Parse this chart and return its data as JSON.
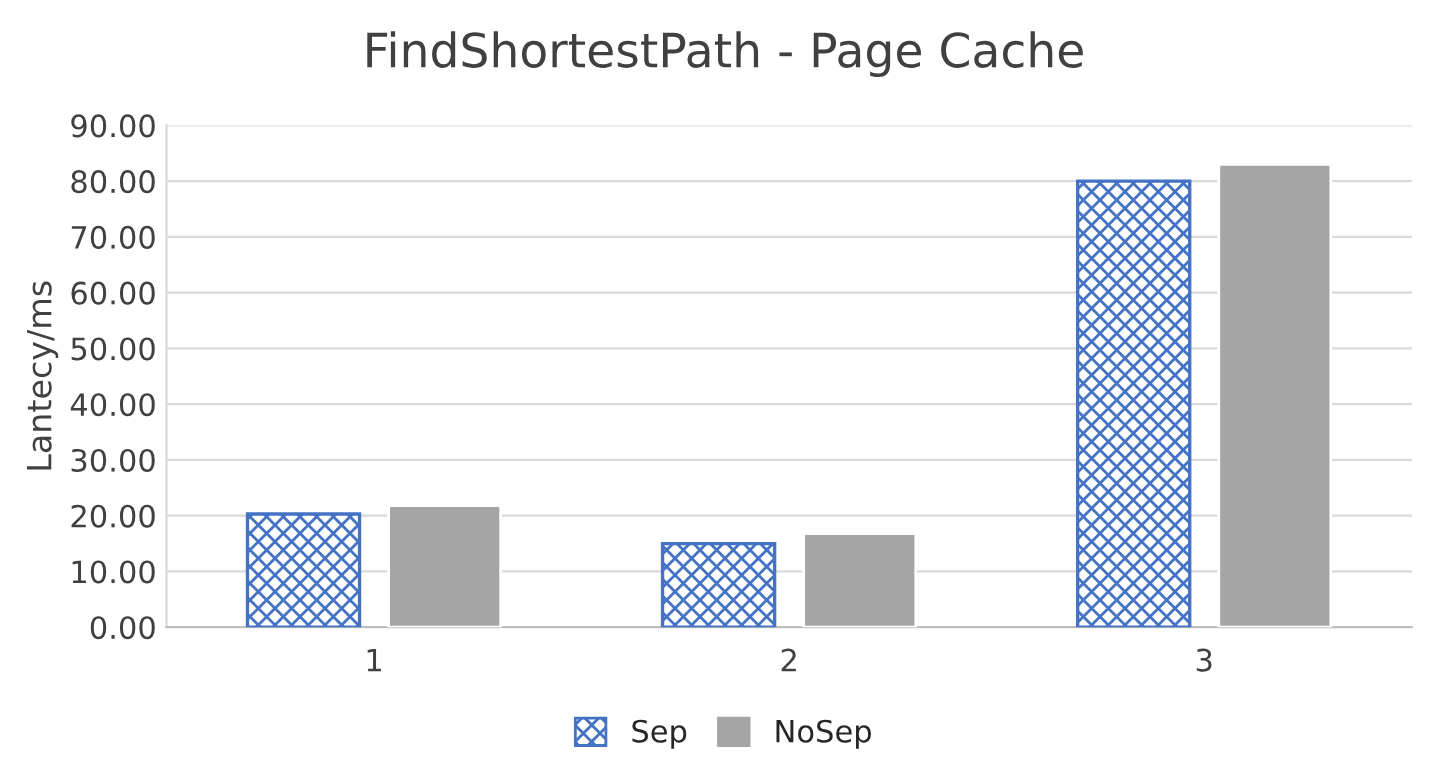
{
  "chart_data": {
    "type": "bar",
    "title": "FindShortestPath - Page Cache",
    "ylabel": "Lantecy/ms",
    "categories": [
      "1",
      "2",
      "3"
    ],
    "series": [
      {
        "name": "Sep",
        "color": "#4472c4",
        "values": [
          20.3,
          15.0,
          80.0
        ]
      },
      {
        "name": "NoSep",
        "color": "#a5a5a5",
        "values": [
          21.8,
          16.8,
          83.0
        ]
      }
    ],
    "ylim": [
      0,
      90
    ],
    "yticks": [
      {
        "value": 0,
        "label": "0.00"
      },
      {
        "value": 10,
        "label": "10.00"
      },
      {
        "value": 20,
        "label": "20.00"
      },
      {
        "value": 30,
        "label": "30.00"
      },
      {
        "value": 40,
        "label": "40.00"
      },
      {
        "value": 50,
        "label": "50.00"
      },
      {
        "value": 60,
        "label": "60.00"
      },
      {
        "value": 70,
        "label": "70.00"
      },
      {
        "value": 80,
        "label": "80.00"
      },
      {
        "value": 90,
        "label": "90.00"
      }
    ],
    "grid": "y",
    "legend": "bottom"
  }
}
